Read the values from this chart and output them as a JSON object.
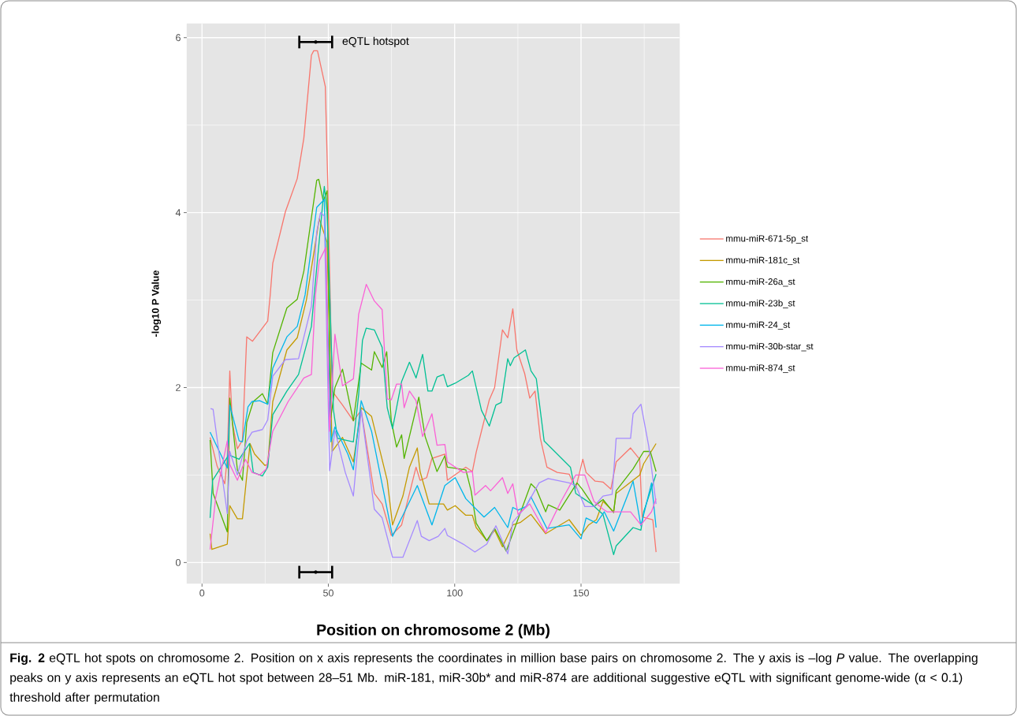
{
  "chart_data": {
    "type": "line",
    "xlabel": "Position on chromosome 2 (Mb)",
    "ylabel": "-log10 P Value",
    "xlim": [
      -6,
      189
    ],
    "ylim": [
      -0.24,
      6.16
    ],
    "xticks": [
      0,
      50,
      100,
      150
    ],
    "yticks": [
      0,
      2,
      4,
      6
    ],
    "grid": true,
    "legend": "right",
    "marker": "none",
    "line_style": "solid",
    "annotations": [
      {
        "text": "eQTL hotspot",
        "x": 45,
        "y": 5.95
      },
      "**Fig. 2** eQTL hot spots on chromosome 2. Position on x axis represents the coordinates in million base pairs on chromosome 2. The y axis is –log *P* value. The overlapping peaks on y axis represents an eQTL hot spot between 28–51 Mb. miR-181, miR-30b* and miR-874 are additional suggestive eQTL with significant genome-wide (α < 0.1) threshold after permutation"
    ],
    "series": [
      {
        "name": "mmu-miR-671-5p_st",
        "color": "#F8766D",
        "x": [
          3.2,
          6,
          9,
          10,
          11,
          12,
          14,
          16,
          17.7,
          20,
          26,
          27,
          28,
          33,
          37.7,
          40.3,
          43.3,
          44.2,
          45.7,
          48.8,
          49.8,
          51.5,
          55.6,
          59.9,
          63,
          68.2,
          71.3,
          74.9,
          79,
          84.7,
          86.3,
          88.9,
          91,
          96.1,
          97.1,
          104.4,
          107,
          108.5,
          113.7,
          115.8,
          118.9,
          121,
          123,
          124.6,
          127.7,
          129.7,
          131.8,
          133.9,
          136.5,
          140.6,
          145.3,
          147.9,
          150.7,
          152,
          155.6,
          158.7,
          161.8,
          163.9,
          169.6,
          173.2,
          174.2,
          178.4,
          179.7
        ],
        "values": [
          1.43,
          1.1,
          0.9,
          1.2,
          2.19,
          1.6,
          1.3,
          1.4,
          2.58,
          2.53,
          2.76,
          3.06,
          3.42,
          4.01,
          4.39,
          4.85,
          5.8,
          5.85,
          5.85,
          5.44,
          4.3,
          1.96,
          1.8,
          1.62,
          1.74,
          0.79,
          0.67,
          0.31,
          0.43,
          1.09,
          0.94,
          0.97,
          1.19,
          1.24,
          0.94,
          1.09,
          1.04,
          1.26,
          1.86,
          2.0,
          2.66,
          2.57,
          2.9,
          2.43,
          2.16,
          1.88,
          1.96,
          1.42,
          1.09,
          1.03,
          1.01,
          0.85,
          1.18,
          1.03,
          0.93,
          0.92,
          0.84,
          1.15,
          1.31,
          1.18,
          0.52,
          0.49,
          0.12
        ]
      },
      {
        "name": "mmu-miR-181c_st",
        "color": "#C49A00",
        "x": [
          3.2,
          3.9,
          10,
          11,
          14,
          16,
          19,
          20.8,
          24.9,
          26,
          28,
          33.6,
          37.7,
          41.3,
          46.4,
          49.5,
          51.5,
          55.6,
          59.9,
          63,
          67.1,
          73.3,
          75.4,
          79.5,
          82.1,
          85.2,
          86.3,
          89.9,
          95.6,
          97.1,
          100.2,
          104.4,
          107,
          108.5,
          112.7,
          115.8,
          118.9,
          123,
          126.1,
          130.2,
          136,
          145.3,
          150,
          153,
          156.1,
          158.7,
          162.9,
          163.9,
          173.2,
          174.8,
          179.7
        ],
        "values": [
          0.33,
          0.15,
          0.21,
          0.65,
          0.5,
          0.5,
          1.36,
          1.24,
          1.11,
          1.12,
          1.84,
          2.43,
          2.57,
          3.0,
          3.93,
          3.66,
          1.27,
          1.43,
          1.15,
          1.77,
          1.67,
          0.94,
          0.43,
          0.76,
          1.09,
          1.31,
          1.04,
          0.67,
          0.67,
          0.6,
          0.65,
          0.54,
          0.54,
          0.4,
          0.25,
          0.37,
          0.18,
          0.43,
          0.46,
          0.55,
          0.33,
          0.49,
          0.31,
          0.43,
          0.49,
          0.7,
          0.58,
          0.79,
          1.0,
          1.13,
          1.36
        ]
      },
      {
        "name": "mmu-miR-26a_st",
        "color": "#53B400",
        "x": [
          3.2,
          4.4,
          10,
          11,
          14,
          16,
          17.7,
          20.3,
          23.9,
          26,
          28,
          33.6,
          37.7,
          40.3,
          45.4,
          46.2,
          48,
          49.5,
          51,
          52.6,
          55.6,
          59.9,
          63,
          67.1,
          68.2,
          71.3,
          73.1,
          74.9,
          77,
          79,
          80,
          85.8,
          88.3,
          93,
          96.1,
          97.1,
          104.4,
          106.5,
          108.5,
          112.7,
          115.8,
          120.4,
          130.2,
          132.3,
          136,
          137,
          141.6,
          148.4,
          150.4,
          155.1,
          158.7,
          162.9,
          163.9,
          170.6,
          174.8,
          177.4,
          179.7
        ],
        "values": [
          1.4,
          0.79,
          0.35,
          1.88,
          1.06,
          0.94,
          1.6,
          1.84,
          1.93,
          1.81,
          2.4,
          2.91,
          3.01,
          3.33,
          4.37,
          4.38,
          4.13,
          4.25,
          1.66,
          2.0,
          2.21,
          1.62,
          2.28,
          2.2,
          2.41,
          2.23,
          2.41,
          1.62,
          1.32,
          1.46,
          1.19,
          1.89,
          1.44,
          1.04,
          1.22,
          1.09,
          1.06,
          0.82,
          0.45,
          0.25,
          0.39,
          0.13,
          0.9,
          0.84,
          0.58,
          0.66,
          0.6,
          0.91,
          0.84,
          0.64,
          0.72,
          0.57,
          0.82,
          1.07,
          1.27,
          1.27,
          1.04
        ]
      },
      {
        "name": "mmu-miR-23b_st",
        "color": "#00C094",
        "x": [
          3.2,
          4.2,
          10.6,
          14.7,
          18.8,
          20.3,
          23.9,
          26,
          28,
          33.6,
          38.2,
          43.3,
          44.4,
          48.4,
          49.5,
          52,
          53.6,
          59.9,
          62,
          63.5,
          65,
          68.2,
          71.3,
          73.3,
          75.4,
          79,
          82.1,
          84.7,
          87.3,
          89.4,
          91,
          93,
          95.6,
          97.1,
          100.2,
          105.4,
          107,
          110.6,
          113.7,
          116.3,
          118.4,
          121,
          122,
          123.5,
          128,
          130.2,
          132.3,
          135.4,
          145.8,
          147.9,
          151,
          154.1,
          158.7,
          162.9,
          163.9,
          170.6,
          173.7,
          174.8,
          179.7
        ],
        "values": [
          0.51,
          0.94,
          1.23,
          1.18,
          1.36,
          1.03,
          0.99,
          1.09,
          1.69,
          1.96,
          2.15,
          2.7,
          3.06,
          4.3,
          4.01,
          1.75,
          1.42,
          1.38,
          1.92,
          2.54,
          2.68,
          2.66,
          2.46,
          1.77,
          1.53,
          2.07,
          2.29,
          2.11,
          2.38,
          1.96,
          1.96,
          2.12,
          2.15,
          2.01,
          2.05,
          2.14,
          2.19,
          1.74,
          1.56,
          1.8,
          1.83,
          2.33,
          2.25,
          2.34,
          2.43,
          2.19,
          2.1,
          1.39,
          1.09,
          0.79,
          0.73,
          0.67,
          0.55,
          0.09,
          0.19,
          0.4,
          0.37,
          0.58,
          1.01
        ]
      },
      {
        "name": "mmu-miR-24_st",
        "color": "#00B6EB",
        "x": [
          3.2,
          10,
          11,
          14.7,
          16,
          18.2,
          19.8,
          22.8,
          26,
          28,
          33.6,
          37.7,
          40.8,
          45.4,
          48.4,
          51,
          52.6,
          57.7,
          59.9,
          63,
          67.1,
          75.4,
          79.5,
          85.2,
          91,
          96.1,
          100.2,
          104.4,
          111.6,
          115.8,
          121,
          123,
          125.1,
          128.2,
          130.2,
          136.5,
          145.3,
          150,
          152,
          156.1,
          159.2,
          162.9,
          170.6,
          173.7,
          177.9,
          179.7
        ],
        "values": [
          1.49,
          1.08,
          1.8,
          1.39,
          1.38,
          1.78,
          1.84,
          1.85,
          1.81,
          2.22,
          2.58,
          2.7,
          3.06,
          4.06,
          4.15,
          1.38,
          1.55,
          1.24,
          1.06,
          1.85,
          1.5,
          0.3,
          0.54,
          0.88,
          0.43,
          0.88,
          0.97,
          0.73,
          0.52,
          0.63,
          0.4,
          0.63,
          0.6,
          0.64,
          0.75,
          0.39,
          0.43,
          0.27,
          0.51,
          0.45,
          0.58,
          0.36,
          0.93,
          0.42,
          0.91,
          0.4
        ]
      },
      {
        "name": "mmu-miR-30b-star_st",
        "color": "#A58AFF",
        "x": [
          3.4,
          4.4,
          6.5,
          10,
          11,
          14,
          17.7,
          19.8,
          23.9,
          26,
          28,
          33,
          38.2,
          43.3,
          45.4,
          46.9,
          48.4,
          50.5,
          52.6,
          56.7,
          59.9,
          63,
          68.2,
          71.3,
          75.4,
          79.5,
          85.2,
          86.8,
          89.9,
          93.5,
          96.1,
          97.1,
          103.4,
          108,
          112.7,
          116.3,
          121,
          123,
          128.2,
          133.4,
          137,
          145.3,
          147.9,
          151.5,
          155.1,
          158.7,
          162.3,
          163.9,
          169.6,
          170.6,
          173.7,
          176.8,
          179.7
        ],
        "values": [
          1.76,
          1.75,
          1.3,
          0.56,
          1.27,
          1.0,
          1.39,
          1.49,
          1.52,
          1.63,
          2.13,
          2.32,
          2.33,
          2.93,
          3.78,
          4.0,
          3.96,
          1.05,
          1.51,
          1.03,
          0.76,
          1.74,
          0.61,
          0.51,
          0.06,
          0.06,
          0.48,
          0.3,
          0.25,
          0.3,
          0.39,
          0.31,
          0.21,
          0.12,
          0.21,
          0.42,
          0.1,
          0.46,
          0.64,
          0.91,
          0.96,
          0.91,
          0.88,
          0.64,
          0.64,
          0.76,
          0.78,
          1.42,
          1.42,
          1.7,
          1.81,
          1.33,
          0.67
        ]
      },
      {
        "type": "scatter",
        "color": "#000000",
        "x": [
          45,
          45
        ],
        "values": [
          5.95,
          -0.11
        ],
        "xerrors": [
          6.5,
          6.5
        ]
      },
      {
        "name": "mmu-miR-874_st",
        "color": "#FB61D7",
        "x": [
          3.2,
          5.4,
          10,
          11,
          14,
          17.2,
          19.8,
          22.8,
          25.4,
          28,
          34.1,
          40.3,
          43.3,
          44.9,
          46.4,
          49,
          50.5,
          52.6,
          55.6,
          59.9,
          62,
          65,
          68.2,
          71.3,
          73.3,
          74.9,
          77,
          79,
          80,
          82.1,
          84.7,
          87.3,
          91,
          93,
          96.1,
          97.1,
          103.4,
          107,
          108,
          112.2,
          114.2,
          118.9,
          121,
          123,
          125.1,
          129.7,
          136,
          142.1,
          147.9,
          151.5,
          155.1,
          158.7,
          160.3,
          169.6,
          173.7,
          177.9,
          179.7
        ],
        "values": [
          0.15,
          0.74,
          1.39,
          1.12,
          0.94,
          1.18,
          1.03,
          1.0,
          1.07,
          1.5,
          1.84,
          2.11,
          2.15,
          3.06,
          3.45,
          3.6,
          1.5,
          2.61,
          2.02,
          2.1,
          2.84,
          3.18,
          2.99,
          2.89,
          1.87,
          1.86,
          2.04,
          2.04,
          1.77,
          1.96,
          1.85,
          1.44,
          1.7,
          1.34,
          1.35,
          1.15,
          1.03,
          1.04,
          0.77,
          0.88,
          0.82,
          0.97,
          0.79,
          0.9,
          0.55,
          0.67,
          0.34,
          0.7,
          1.0,
          1.0,
          0.7,
          0.61,
          0.58,
          0.58,
          0.43,
          0.58,
          0.73
        ]
      }
    ]
  }
}
